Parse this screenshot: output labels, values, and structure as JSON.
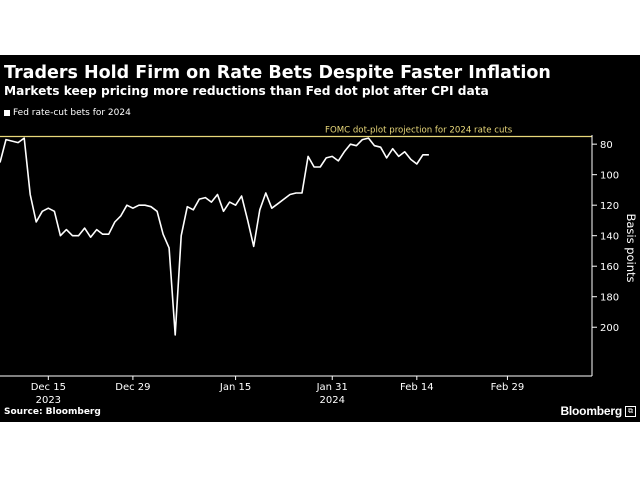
{
  "chart_data": {
    "type": "line",
    "title": "Traders Hold Firm on Rate Bets Despite Faster Inflation",
    "subtitle": "Markets keep pricing more reductions than Fed dot plot after CPI data",
    "xlabel": "",
    "ylabel": "Basis points",
    "x_ticks": [
      {
        "date": "2023-12-15",
        "label": "Dec 15"
      },
      {
        "date": "2023-12-29",
        "label": "Dec 29"
      },
      {
        "date": "2024-01-15",
        "label": "Jan 15"
      },
      {
        "date": "2024-01-31",
        "label": "Jan 31"
      },
      {
        "date": "2024-02-14",
        "label": "Feb 14"
      },
      {
        "date": "2024-02-29",
        "label": "Feb 29"
      }
    ],
    "year_labels": [
      {
        "date": "2023-12-15",
        "label": "2023"
      },
      {
        "date": "2024-01-31",
        "label": "2024"
      }
    ],
    "y_ticks": [
      80,
      100,
      120,
      140,
      160,
      180,
      200
    ],
    "ylim": [
      74,
      230
    ],
    "y_inverted": true,
    "xlim": [
      "2023-12-07",
      "2024-03-14"
    ],
    "grid": false,
    "legend_position": "top-left",
    "series": [
      {
        "name": "Fed rate-cut bets for 2024",
        "color": "#ffffff",
        "points": [
          [
            "2023-12-07",
            92
          ],
          [
            "2023-12-08",
            77
          ],
          [
            "2023-12-09",
            78
          ],
          [
            "2023-12-10",
            79
          ],
          [
            "2023-12-11",
            76
          ],
          [
            "2023-12-12",
            113
          ],
          [
            "2023-12-13",
            131
          ],
          [
            "2023-12-14",
            124
          ],
          [
            "2023-12-15",
            122
          ],
          [
            "2023-12-16",
            124
          ],
          [
            "2023-12-17",
            140
          ],
          [
            "2023-12-18",
            136
          ],
          [
            "2023-12-19",
            140
          ],
          [
            "2023-12-20",
            140
          ],
          [
            "2023-12-21",
            135
          ],
          [
            "2023-12-22",
            141
          ],
          [
            "2023-12-23",
            136
          ],
          [
            "2023-12-24",
            139
          ],
          [
            "2023-12-25",
            139
          ],
          [
            "2023-12-26",
            131
          ],
          [
            "2023-12-27",
            127
          ],
          [
            "2023-12-28",
            120
          ],
          [
            "2023-12-29",
            122
          ],
          [
            "2023-12-30",
            120
          ],
          [
            "2023-12-31",
            120
          ],
          [
            "2024-01-01",
            121
          ],
          [
            "2024-01-02",
            124
          ],
          [
            "2024-01-03",
            139
          ],
          [
            "2024-01-04",
            148
          ],
          [
            "2024-01-05",
            205
          ],
          [
            "2024-01-06",
            140
          ],
          [
            "2024-01-07",
            121
          ],
          [
            "2024-01-08",
            123
          ],
          [
            "2024-01-09",
            116
          ],
          [
            "2024-01-10",
            115
          ],
          [
            "2024-01-11",
            118
          ],
          [
            "2024-01-12",
            113
          ],
          [
            "2024-01-13",
            124
          ],
          [
            "2024-01-14",
            118
          ],
          [
            "2024-01-15",
            120
          ],
          [
            "2024-01-16",
            114
          ],
          [
            "2024-01-17",
            130
          ],
          [
            "2024-01-18",
            147
          ],
          [
            "2024-01-19",
            123
          ],
          [
            "2024-01-20",
            112
          ],
          [
            "2024-01-21",
            122
          ],
          [
            "2024-01-22",
            119
          ],
          [
            "2024-01-23",
            116
          ],
          [
            "2024-01-24",
            113
          ],
          [
            "2024-01-25",
            112
          ],
          [
            "2024-01-26",
            112
          ],
          [
            "2024-01-27",
            88
          ],
          [
            "2024-01-28",
            95
          ],
          [
            "2024-01-29",
            95
          ],
          [
            "2024-01-30",
            89
          ],
          [
            "2024-01-31",
            88
          ],
          [
            "2024-02-01",
            91
          ],
          [
            "2024-02-02",
            85
          ],
          [
            "2024-02-03",
            80
          ],
          [
            "2024-02-04",
            81
          ],
          [
            "2024-02-05",
            77
          ],
          [
            "2024-02-06",
            76
          ],
          [
            "2024-02-07",
            81
          ],
          [
            "2024-02-08",
            82
          ],
          [
            "2024-02-09",
            89
          ],
          [
            "2024-02-10",
            83
          ],
          [
            "2024-02-11",
            88
          ],
          [
            "2024-02-12",
            85
          ],
          [
            "2024-02-13",
            90
          ],
          [
            "2024-02-14",
            93
          ],
          [
            "2024-02-15",
            87
          ],
          [
            "2024-02-16",
            87
          ]
        ]
      }
    ],
    "reference_line": {
      "value": 75,
      "label": "FOMC dot-plot projection for 2024 rate cuts",
      "color": "#e8d77a"
    },
    "source": "Source: Bloomberg"
  },
  "brand": {
    "name": "Bloomberg",
    "mark": "⧉"
  }
}
